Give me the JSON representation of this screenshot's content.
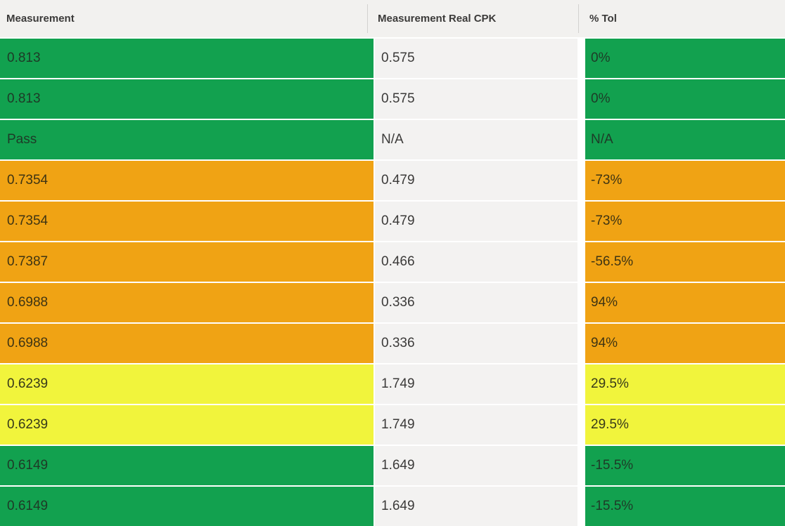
{
  "chart_data": {
    "type": "table",
    "title": "",
    "columns": [
      "Measurement",
      "Measurement Real CPK",
      "% Tol"
    ],
    "rows": [
      {
        "measurement": "0.813",
        "real_cpk": "0.575",
        "pct_tol": "0%",
        "status": "green"
      },
      {
        "measurement": "0.813",
        "real_cpk": "0.575",
        "pct_tol": "0%",
        "status": "green"
      },
      {
        "measurement": "Pass",
        "real_cpk": "N/A",
        "pct_tol": "N/A",
        "status": "green"
      },
      {
        "measurement": "0.7354",
        "real_cpk": "0.479",
        "pct_tol": "-73%",
        "status": "orange"
      },
      {
        "measurement": "0.7354",
        "real_cpk": "0.479",
        "pct_tol": "-73%",
        "status": "orange"
      },
      {
        "measurement": "0.7387",
        "real_cpk": "0.466",
        "pct_tol": "-56.5%",
        "status": "orange"
      },
      {
        "measurement": "0.6988",
        "real_cpk": "0.336",
        "pct_tol": "94%",
        "status": "orange"
      },
      {
        "measurement": "0.6988",
        "real_cpk": "0.336",
        "pct_tol": "94%",
        "status": "orange"
      },
      {
        "measurement": "0.6239",
        "real_cpk": "1.749",
        "pct_tol": "29.5%",
        "status": "yellow"
      },
      {
        "measurement": "0.6239",
        "real_cpk": "1.749",
        "pct_tol": "29.5%",
        "status": "yellow"
      },
      {
        "measurement": "0.6149",
        "real_cpk": "1.649",
        "pct_tol": "-15.5%",
        "status": "green"
      },
      {
        "measurement": "0.6149",
        "real_cpk": "1.649",
        "pct_tol": "-15.5%",
        "status": "green"
      }
    ],
    "status_colors": {
      "green": "#12A14F",
      "orange": "#F0A314",
      "yellow": "#F1F43C"
    },
    "header_bg": "#F2F1EF",
    "midcell_bg": "#F3F2F1",
    "layout": {
      "legend": "none",
      "grid": "white 2px row gaps, conditional formatting on Measurement and % Tol columns"
    }
  }
}
